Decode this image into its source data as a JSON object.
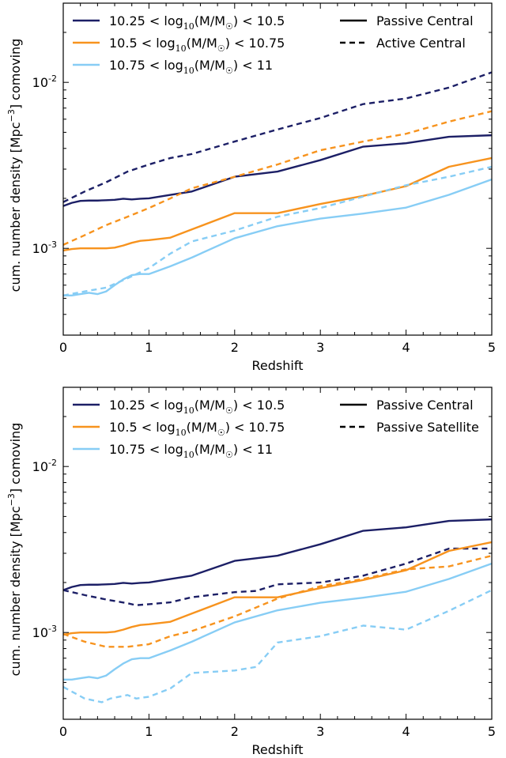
{
  "colors": {
    "bin1": "#1c1f66",
    "bin2": "#f7931e",
    "bin3": "#87cdf5"
  },
  "chart_data": [
    {
      "type": "line",
      "panel": "top",
      "xlabel": "Redshift",
      "ylabel_parts": [
        "cum. number density [Mpc",
        "−3",
        "] comoving"
      ],
      "xlim": [
        0,
        5
      ],
      "ylim": [
        0.0003,
        0.03
      ],
      "yscale": "log",
      "x_ticks": [
        0,
        1,
        2,
        3,
        4,
        5
      ],
      "x_tick_labels": [
        "0",
        "1",
        "2",
        "3",
        "4",
        "5"
      ],
      "y_tick_labels": [
        {
          "base": "10",
          "exp": "-3",
          "value": 0.001
        },
        {
          "base": "10",
          "exp": "-2",
          "value": 0.01
        }
      ],
      "legend_mass": [
        {
          "pre": "10.25 < log",
          "sub": "10",
          "mid": "(M/M",
          "sun": "☉",
          "post": ") < 10.5",
          "color_key": "bin1"
        },
        {
          "pre": "10.5 < log",
          "sub": "10",
          "mid": "(M/M",
          "sun": "☉",
          "post": ") < 10.75",
          "color_key": "bin2"
        },
        {
          "pre": "10.75 < log",
          "sub": "10",
          "mid": "(M/M",
          "sun": "☉",
          "post": ") < 11",
          "color_key": "bin3"
        }
      ],
      "legend_type": [
        {
          "label": "Passive Central",
          "style": "solid"
        },
        {
          "label": "Active Central",
          "style": "dashed"
        }
      ],
      "legend_placement": "top",
      "series": [
        {
          "bin": "bin1",
          "style": "solid",
          "x": [
            0,
            0.1,
            0.2,
            0.3,
            0.4,
            0.5,
            0.6,
            0.7,
            0.8,
            0.9,
            1.0,
            1.25,
            1.5,
            2.0,
            2.5,
            3.0,
            3.5,
            4.0,
            4.5,
            5.0
          ],
          "y": [
            0.0018,
            0.00188,
            0.00193,
            0.00194,
            0.00194,
            0.00195,
            0.00196,
            0.00199,
            0.00197,
            0.00199,
            0.002,
            0.0021,
            0.0022,
            0.0027,
            0.0029,
            0.0034,
            0.0041,
            0.0043,
            0.0047,
            0.0048
          ]
        },
        {
          "bin": "bin1",
          "style": "dashed",
          "x": [
            0,
            0.25,
            0.5,
            0.75,
            1.0,
            1.25,
            1.5,
            2.0,
            2.5,
            3.0,
            3.5,
            4.0,
            4.5,
            5.0
          ],
          "y": [
            0.0019,
            0.0022,
            0.0025,
            0.0029,
            0.0032,
            0.0035,
            0.0037,
            0.0044,
            0.0052,
            0.0061,
            0.0074,
            0.008,
            0.0093,
            0.0115
          ]
        },
        {
          "bin": "bin2",
          "style": "solid",
          "x": [
            0,
            0.1,
            0.2,
            0.3,
            0.4,
            0.5,
            0.6,
            0.7,
            0.8,
            0.9,
            1.0,
            1.25,
            1.5,
            2.0,
            2.5,
            3.0,
            3.5,
            4.0,
            4.5,
            5.0
          ],
          "y": [
            0.00097,
            0.00099,
            0.001,
            0.001,
            0.001,
            0.001,
            0.00101,
            0.00104,
            0.00108,
            0.00111,
            0.00112,
            0.00116,
            0.0013,
            0.00163,
            0.00163,
            0.00185,
            0.00207,
            0.00237,
            0.0031,
            0.0035
          ]
        },
        {
          "bin": "bin2",
          "style": "dashed",
          "x": [
            0,
            0.25,
            0.5,
            0.75,
            1.0,
            1.25,
            1.5,
            2.0,
            2.5,
            3.0,
            3.5,
            4.0,
            4.5,
            5.0
          ],
          "y": [
            0.00105,
            0.0012,
            0.00138,
            0.00155,
            0.00175,
            0.002,
            0.0023,
            0.0027,
            0.0032,
            0.0039,
            0.0044,
            0.0049,
            0.0058,
            0.0067
          ]
        },
        {
          "bin": "bin3",
          "style": "solid",
          "x": [
            0,
            0.1,
            0.2,
            0.3,
            0.4,
            0.5,
            0.6,
            0.7,
            0.8,
            0.9,
            1.0,
            1.25,
            1.5,
            2.0,
            2.5,
            3.0,
            3.5,
            4.0,
            4.5,
            5.0
          ],
          "y": [
            0.00052,
            0.00052,
            0.00053,
            0.00054,
            0.00053,
            0.00055,
            0.0006,
            0.00065,
            0.00069,
            0.0007,
            0.0007,
            0.00078,
            0.00088,
            0.00115,
            0.00136,
            0.00151,
            0.00162,
            0.00176,
            0.0021,
            0.0026
          ]
        },
        {
          "bin": "bin3",
          "style": "dashed",
          "x": [
            0,
            0.25,
            0.5,
            0.75,
            1.0,
            1.25,
            1.5,
            2.0,
            2.5,
            3.0,
            3.5,
            4.0,
            4.5,
            5.0
          ],
          "y": [
            0.00052,
            0.00055,
            0.00058,
            0.00066,
            0.00076,
            0.00093,
            0.0011,
            0.00128,
            0.00155,
            0.00175,
            0.00205,
            0.0024,
            0.0027,
            0.0031
          ]
        }
      ]
    },
    {
      "type": "line",
      "panel": "bottom",
      "xlabel": "Redshift",
      "ylabel_parts": [
        "cum. number density [Mpc",
        "−3",
        "] comoving"
      ],
      "xlim": [
        0,
        5
      ],
      "ylim": [
        0.0003,
        0.03
      ],
      "yscale": "log",
      "x_ticks": [
        0,
        1,
        2,
        3,
        4,
        5
      ],
      "x_tick_labels": [
        "0",
        "1",
        "2",
        "3",
        "4",
        "5"
      ],
      "y_tick_labels": [
        {
          "base": "10",
          "exp": "-3",
          "value": 0.001
        },
        {
          "base": "10",
          "exp": "-2",
          "value": 0.01
        }
      ],
      "legend_mass": [
        {
          "pre": "10.25 < log",
          "sub": "10",
          "mid": "(M/M",
          "sun": "☉",
          "post": ") < 10.5",
          "color_key": "bin1"
        },
        {
          "pre": "10.5 < log",
          "sub": "10",
          "mid": "(M/M",
          "sun": "☉",
          "post": ") < 10.75",
          "color_key": "bin2"
        },
        {
          "pre": "10.75 < log",
          "sub": "10",
          "mid": "(M/M",
          "sun": "☉",
          "post": ") < 11",
          "color_key": "bin3"
        }
      ],
      "legend_type": [
        {
          "label": "Passive Central",
          "style": "solid"
        },
        {
          "label": "Passive Satellite",
          "style": "dashed"
        }
      ],
      "legend_placement": "top",
      "series": [
        {
          "bin": "bin1",
          "style": "solid",
          "x": [
            0,
            0.1,
            0.2,
            0.3,
            0.4,
            0.5,
            0.6,
            0.7,
            0.8,
            0.9,
            1.0,
            1.25,
            1.5,
            2.0,
            2.5,
            3.0,
            3.5,
            4.0,
            4.5,
            5.0
          ],
          "y": [
            0.0018,
            0.00188,
            0.00193,
            0.00194,
            0.00194,
            0.00195,
            0.00196,
            0.00199,
            0.00197,
            0.00199,
            0.002,
            0.0021,
            0.0022,
            0.0027,
            0.0029,
            0.0034,
            0.0041,
            0.0043,
            0.0047,
            0.0048
          ]
        },
        {
          "bin": "bin1",
          "style": "dashed",
          "x": [
            0,
            0.25,
            0.5,
            0.75,
            0.85,
            1.0,
            1.25,
            1.5,
            2.0,
            2.25,
            2.5,
            3.0,
            3.5,
            4.0,
            4.5,
            5.0
          ],
          "y": [
            0.0018,
            0.00168,
            0.00158,
            0.0015,
            0.00146,
            0.00148,
            0.00152,
            0.00163,
            0.00175,
            0.00178,
            0.00195,
            0.002,
            0.0022,
            0.0026,
            0.0032,
            0.0032
          ]
        },
        {
          "bin": "bin2",
          "style": "solid",
          "x": [
            0,
            0.1,
            0.2,
            0.3,
            0.4,
            0.5,
            0.6,
            0.7,
            0.8,
            0.9,
            1.0,
            1.25,
            1.5,
            2.0,
            2.5,
            3.0,
            3.5,
            4.0,
            4.5,
            5.0
          ],
          "y": [
            0.00097,
            0.00099,
            0.001,
            0.001,
            0.001,
            0.001,
            0.00101,
            0.00104,
            0.00108,
            0.00111,
            0.00112,
            0.00116,
            0.0013,
            0.00163,
            0.00163,
            0.00185,
            0.00207,
            0.00237,
            0.0031,
            0.0035
          ]
        },
        {
          "bin": "bin2",
          "style": "dashed",
          "x": [
            0,
            0.25,
            0.5,
            0.75,
            1.0,
            1.25,
            1.5,
            2.0,
            2.5,
            3.0,
            3.5,
            4.0,
            4.5,
            5.0
          ],
          "y": [
            0.00098,
            0.00088,
            0.00082,
            0.00082,
            0.00085,
            0.00095,
            0.00102,
            0.00125,
            0.0016,
            0.0019,
            0.0021,
            0.0024,
            0.0025,
            0.0029
          ]
        },
        {
          "bin": "bin3",
          "style": "solid",
          "x": [
            0,
            0.1,
            0.2,
            0.3,
            0.4,
            0.5,
            0.6,
            0.7,
            0.8,
            0.9,
            1.0,
            1.25,
            1.5,
            2.0,
            2.5,
            3.0,
            3.5,
            4.0,
            4.5,
            5.0
          ],
          "y": [
            0.00052,
            0.00052,
            0.00053,
            0.00054,
            0.00053,
            0.00055,
            0.0006,
            0.00065,
            0.00069,
            0.0007,
            0.0007,
            0.00078,
            0.00088,
            0.00115,
            0.00136,
            0.00151,
            0.00162,
            0.00176,
            0.0021,
            0.0026
          ]
        },
        {
          "bin": "bin3",
          "style": "dashed",
          "x": [
            0,
            0.25,
            0.45,
            0.55,
            0.75,
            0.85,
            1.0,
            1.25,
            1.5,
            2.0,
            2.25,
            2.5,
            3.0,
            3.5,
            4.0,
            4.5,
            5.0
          ],
          "y": [
            0.00047,
            0.0004,
            0.00038,
            0.0004,
            0.00042,
            0.0004,
            0.00041,
            0.00046,
            0.00057,
            0.00059,
            0.00062,
            0.00087,
            0.00095,
            0.0011,
            0.00104,
            0.00135,
            0.0018
          ]
        }
      ]
    }
  ]
}
